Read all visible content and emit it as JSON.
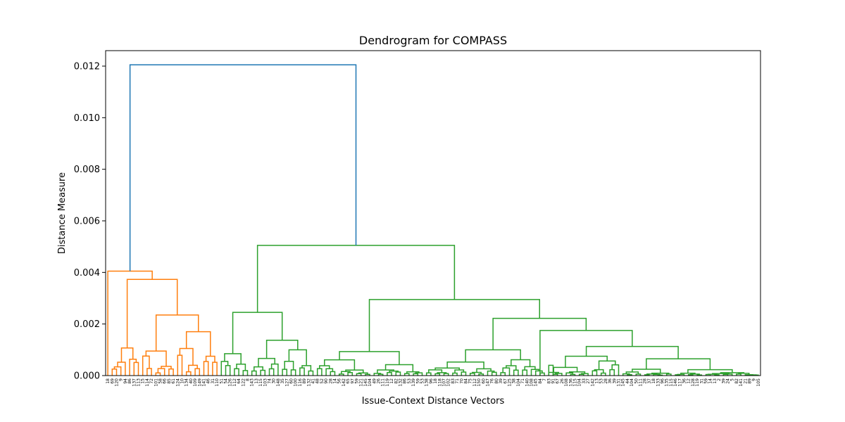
{
  "chart_data": {
    "type": "dendrogram",
    "title": "Dendrogram for COMPASS",
    "xlabel": "Issue-Context Distance Vectors",
    "ylabel": "Distance Measure",
    "ylim": [
      0,
      0.0126
    ],
    "yticks": [
      "0.000",
      "0.002",
      "0.004",
      "0.006",
      "0.008",
      "0.010",
      "0.012"
    ],
    "ytick_values": [
      0,
      0.002,
      0.004,
      0.006,
      0.008,
      0.01,
      0.012
    ],
    "grid": false,
    "colors": {
      "cluster1": "#ff7f0e",
      "cluster2": "#2ca02c",
      "root": "#1f77b4"
    },
    "leaf_count": 150,
    "leaf_labels": [
      "18",
      "69",
      "120",
      "9",
      "94",
      "86",
      "137",
      "113",
      "15",
      "114",
      "72",
      "101",
      "58",
      "66",
      "85",
      "61",
      "124",
      "10",
      "134",
      "40",
      "109",
      "149",
      "141",
      "46",
      "31",
      "110",
      "51",
      "54",
      "126",
      "112",
      "64",
      "122",
      "8",
      "143",
      "13",
      "115",
      "103",
      "74",
      "30",
      "148",
      "35",
      "127",
      "60",
      "100",
      "116",
      "89",
      "132",
      "41",
      "48",
      "52",
      "90",
      "28",
      "14",
      "56",
      "142",
      "65",
      "97",
      "59",
      "121",
      "145",
      "104",
      "49",
      "26",
      "111",
      "119",
      "12",
      "82",
      "132",
      "86",
      "53",
      "139",
      "59",
      "53",
      "138",
      "96",
      "18",
      "118",
      "107",
      "102",
      "83",
      "71",
      "70",
      "84",
      "75",
      "112",
      "150",
      "60",
      "147",
      "76",
      "80",
      "39",
      "67",
      "125",
      "38",
      "104",
      "71",
      "140",
      "108",
      "145",
      "84",
      "7",
      "83",
      "91",
      "67",
      "26",
      "108",
      "136",
      "115",
      "104",
      "33",
      "27",
      "142",
      "13",
      "53",
      "28",
      "36",
      "39",
      "131",
      "145",
      "44",
      "104",
      "50",
      "111",
      "28",
      "37",
      "18",
      "133",
      "96",
      "135",
      "115",
      "146",
      "117",
      "36",
      "12",
      "128",
      "119",
      "31",
      "59",
      "14",
      "13",
      "2",
      "39",
      "24",
      "5",
      "82",
      "141",
      "21",
      "89",
      "9",
      "105"
    ],
    "merges": {
      "root": 0.01205,
      "cluster1_top": 0.00405,
      "cluster2_top": 0.00505,
      "cluster2_left": 0.00245,
      "cluster2_right": 0.00295,
      "cluster2_right_right": 0.00222,
      "cluster2_right_right_right": 0.00175,
      "cluster2_right_right_right_right": 0.00113,
      "cluster1_sub": 0.00373,
      "cluster1_subsub": 0.00235,
      "cluster1_subsubsub": 0.0017,
      "cluster1_left": 0.00107,
      "cluster2_right_left": 0.00093,
      "cluster2_left_right": 0.00137
    }
  }
}
